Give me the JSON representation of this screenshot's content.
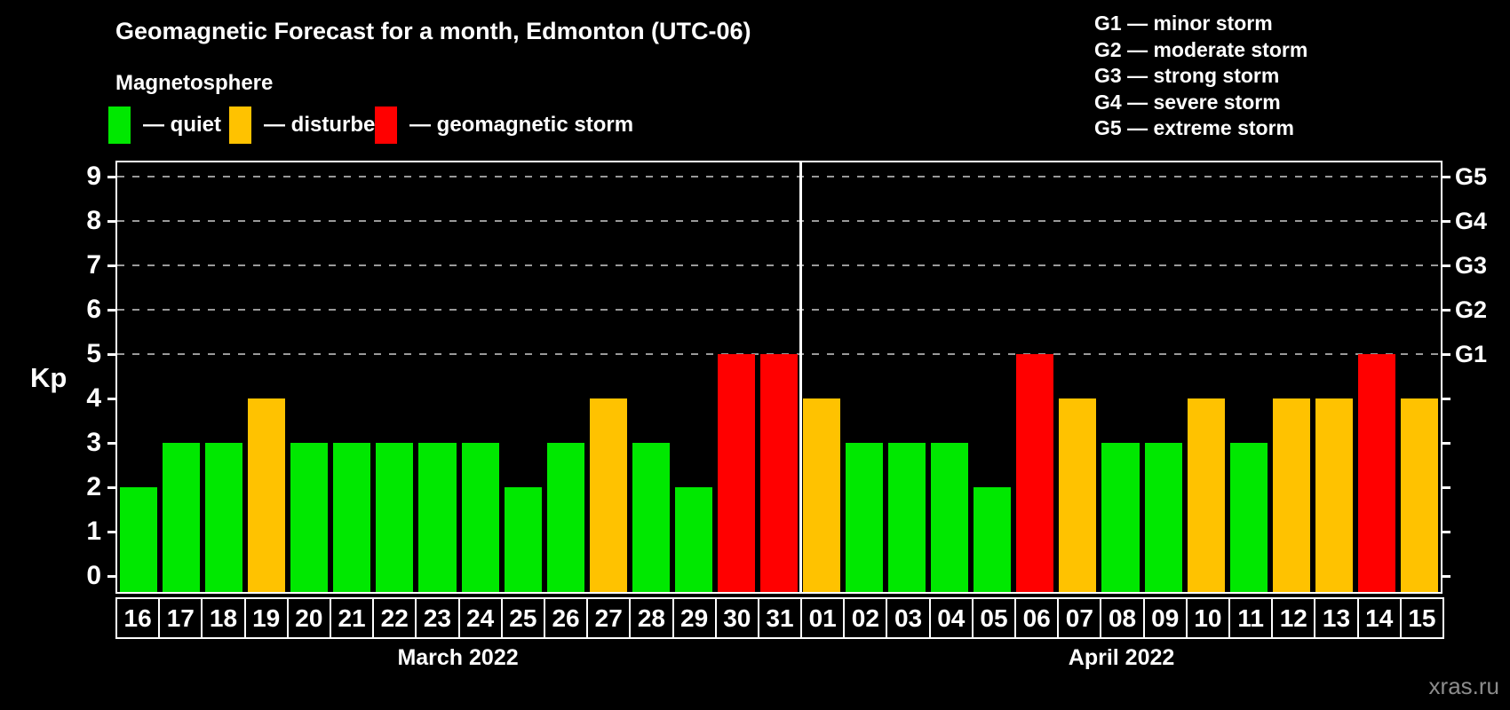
{
  "title": "Geomagnetic Forecast for a month, Edmonton (UTC-06)",
  "subtitle": "Magnetosphere",
  "watermark": "xras.ru",
  "colors": {
    "quiet": "#00e800",
    "disturbed": "#ffc200",
    "storm": "#ff0000",
    "grid": "#9a9a9a",
    "watermark_text": "#8c8c8c"
  },
  "legend": {
    "items": [
      {
        "key": "quiet",
        "label": "— quiet"
      },
      {
        "key": "disturbed",
        "label": "— disturbed"
      },
      {
        "key": "storm",
        "label": "— geomagnetic storm"
      }
    ]
  },
  "g_scale_legend": [
    "G1 — minor storm",
    "G2 — moderate storm",
    "G3 — strong storm",
    "G4 — severe storm",
    "G5 — extreme storm"
  ],
  "chart_data": {
    "type": "bar",
    "ylabel": "Kp",
    "ylim": [
      0,
      9
    ],
    "y_ticks": [
      0,
      1,
      2,
      3,
      4,
      5,
      6,
      7,
      8,
      9
    ],
    "gridlines_at_kp": [
      5,
      6,
      7,
      8,
      9
    ],
    "right_axis": [
      {
        "kp": 5,
        "label": "G1"
      },
      {
        "kp": 6,
        "label": "G2"
      },
      {
        "kp": 7,
        "label": "G3"
      },
      {
        "kp": 8,
        "label": "G4"
      },
      {
        "kp": 9,
        "label": "G5"
      }
    ],
    "months": [
      {
        "label": "March 2022",
        "days": [
          {
            "date": "16",
            "kp": 2,
            "status": "quiet"
          },
          {
            "date": "17",
            "kp": 3,
            "status": "quiet"
          },
          {
            "date": "18",
            "kp": 3,
            "status": "quiet"
          },
          {
            "date": "19",
            "kp": 4,
            "status": "disturbed"
          },
          {
            "date": "20",
            "kp": 3,
            "status": "quiet"
          },
          {
            "date": "21",
            "kp": 3,
            "status": "quiet"
          },
          {
            "date": "22",
            "kp": 3,
            "status": "quiet"
          },
          {
            "date": "23",
            "kp": 3,
            "status": "quiet"
          },
          {
            "date": "24",
            "kp": 3,
            "status": "quiet"
          },
          {
            "date": "25",
            "kp": 2,
            "status": "quiet"
          },
          {
            "date": "26",
            "kp": 3,
            "status": "quiet"
          },
          {
            "date": "27",
            "kp": 4,
            "status": "disturbed"
          },
          {
            "date": "28",
            "kp": 3,
            "status": "quiet"
          },
          {
            "date": "29",
            "kp": 2,
            "status": "quiet"
          },
          {
            "date": "30",
            "kp": 5,
            "status": "storm"
          },
          {
            "date": "31",
            "kp": 5,
            "status": "storm"
          }
        ]
      },
      {
        "label": "April 2022",
        "days": [
          {
            "date": "01",
            "kp": 4,
            "status": "disturbed"
          },
          {
            "date": "02",
            "kp": 3,
            "status": "quiet"
          },
          {
            "date": "03",
            "kp": 3,
            "status": "quiet"
          },
          {
            "date": "04",
            "kp": 3,
            "status": "quiet"
          },
          {
            "date": "05",
            "kp": 2,
            "status": "quiet"
          },
          {
            "date": "06",
            "kp": 5,
            "status": "storm"
          },
          {
            "date": "07",
            "kp": 4,
            "status": "disturbed"
          },
          {
            "date": "08",
            "kp": 3,
            "status": "quiet"
          },
          {
            "date": "09",
            "kp": 3,
            "status": "quiet"
          },
          {
            "date": "10",
            "kp": 4,
            "status": "disturbed"
          },
          {
            "date": "11",
            "kp": 3,
            "status": "quiet"
          },
          {
            "date": "12",
            "kp": 4,
            "status": "disturbed"
          },
          {
            "date": "13",
            "kp": 4,
            "status": "disturbed"
          },
          {
            "date": "14",
            "kp": 5,
            "status": "storm"
          },
          {
            "date": "15",
            "kp": 4,
            "status": "disturbed"
          }
        ]
      }
    ]
  }
}
